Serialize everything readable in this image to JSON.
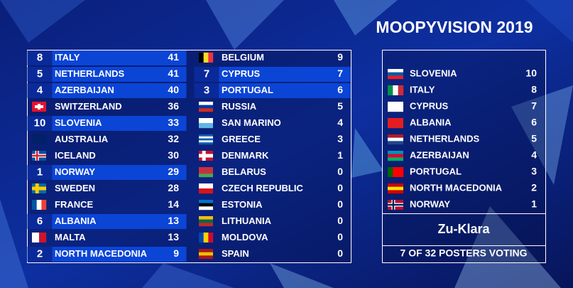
{
  "header": {
    "title": "MOOPYVISION 2019"
  },
  "scoreboard": {
    "columns": [
      [
        {
          "points": 8,
          "country": "ITALY",
          "total": 41
        },
        {
          "points": 5,
          "country": "NETHERLANDS",
          "total": 41
        },
        {
          "points": 4,
          "country": "AZERBAIJAN",
          "total": 40
        },
        {
          "country": "SWITZERLAND",
          "total": 36,
          "flag": {
            "kind": "cross",
            "colors": [
              "#e8112d",
              "#ffffff"
            ]
          }
        },
        {
          "points": 10,
          "country": "SLOVENIA",
          "total": 33
        },
        {
          "country": "AUSTRALIA",
          "total": 32,
          "flag": {
            "kind": "h",
            "colors": [
              "#012169"
            ]
          }
        },
        {
          "country": "ICELAND",
          "total": 30,
          "flag": {
            "kind": "nordic",
            "colors": [
              "#02529c",
              "#ffffff",
              "#dc1e35"
            ]
          }
        },
        {
          "points": 1,
          "country": "NORWAY",
          "total": 29
        },
        {
          "country": "SWEDEN",
          "total": 28,
          "flag": {
            "kind": "nordic",
            "colors": [
              "#006aa7",
              "#fecc00"
            ]
          }
        },
        {
          "country": "FRANCE",
          "total": 14,
          "flag": {
            "kind": "v",
            "colors": [
              "#0055a4",
              "#ffffff",
              "#ef4135"
            ]
          }
        },
        {
          "points": 6,
          "country": "ALBANIA",
          "total": 13
        },
        {
          "country": "MALTA",
          "total": 13,
          "flag": {
            "kind": "v",
            "colors": [
              "#ffffff",
              "#cf142b"
            ]
          }
        },
        {
          "points": 2,
          "country": "NORTH MACEDONIA",
          "total": 9
        }
      ],
      [
        {
          "country": "BELGIUM",
          "total": 9,
          "flag": {
            "kind": "v",
            "colors": [
              "#000000",
              "#fdda24",
              "#ef3340"
            ]
          }
        },
        {
          "points": 7,
          "country": "CYPRUS",
          "total": 7
        },
        {
          "points": 3,
          "country": "PORTUGAL",
          "total": 6
        },
        {
          "country": "RUSSIA",
          "total": 5,
          "flag": {
            "kind": "h",
            "colors": [
              "#ffffff",
              "#0039a6",
              "#d52b1e"
            ]
          }
        },
        {
          "country": "SAN MARINO",
          "total": 4,
          "flag": {
            "kind": "h",
            "colors": [
              "#ffffff",
              "#5eb6e4"
            ]
          }
        },
        {
          "country": "GREECE",
          "total": 3,
          "flag": {
            "kind": "h",
            "colors": [
              "#0d5eaf",
              "#ffffff",
              "#0d5eaf",
              "#ffffff",
              "#0d5eaf"
            ]
          }
        },
        {
          "country": "DENMARK",
          "total": 1,
          "flag": {
            "kind": "nordic",
            "colors": [
              "#c8102e",
              "#ffffff"
            ]
          }
        },
        {
          "country": "BELARUS",
          "total": 0,
          "flag": {
            "kind": "h",
            "colors": [
              "#c8313e",
              "#c8313e",
              "#4aa657"
            ]
          }
        },
        {
          "country": "CZECH REPUBLIC",
          "total": 0,
          "flag": {
            "kind": "h",
            "colors": [
              "#ffffff",
              "#d7141a"
            ]
          }
        },
        {
          "country": "ESTONIA",
          "total": 0,
          "flag": {
            "kind": "h",
            "colors": [
              "#0072ce",
              "#000000",
              "#ffffff"
            ]
          }
        },
        {
          "country": "LITHUANIA",
          "total": 0,
          "flag": {
            "kind": "h",
            "colors": [
              "#fdb913",
              "#006a44",
              "#c1272d"
            ]
          }
        },
        {
          "country": "MOLDOVA",
          "total": 0,
          "flag": {
            "kind": "v",
            "colors": [
              "#0046ae",
              "#ffd200",
              "#cc092f"
            ]
          }
        },
        {
          "country": "SPAIN",
          "total": 0,
          "flag": {
            "kind": "h",
            "colors": [
              "#aa151b",
              "#f1bf00",
              "#aa151b"
            ]
          }
        }
      ]
    ]
  },
  "voter": {
    "entries": [
      {
        "country": "SLOVENIA",
        "points": 10,
        "flag": {
          "kind": "h",
          "colors": [
            "#ffffff",
            "#005da4",
            "#ed1c24"
          ]
        }
      },
      {
        "country": "ITALY",
        "points": 8,
        "flag": {
          "kind": "v",
          "colors": [
            "#009246",
            "#ffffff",
            "#ce2b37"
          ]
        }
      },
      {
        "country": "CYPRUS",
        "points": 7,
        "flag": {
          "kind": "h",
          "colors": [
            "#ffffff"
          ]
        }
      },
      {
        "country": "ALBANIA",
        "points": 6,
        "flag": {
          "kind": "h",
          "colors": [
            "#e41e20"
          ]
        }
      },
      {
        "country": "NETHERLANDS",
        "points": 5,
        "flag": {
          "kind": "h",
          "colors": [
            "#ae1c28",
            "#ffffff",
            "#21468b"
          ]
        }
      },
      {
        "country": "AZERBAIJAN",
        "points": 4,
        "flag": {
          "kind": "h",
          "colors": [
            "#0092bc",
            "#e4002b",
            "#00af66"
          ]
        }
      },
      {
        "country": "PORTUGAL",
        "points": 3,
        "flag": {
          "kind": "v",
          "colors": [
            "#006600",
            "#ff0000",
            "#ff0000"
          ]
        }
      },
      {
        "country": "NORTH MACEDONIA",
        "points": 2,
        "flag": {
          "kind": "h",
          "colors": [
            "#d20000",
            "#ffe600",
            "#d20000"
          ]
        }
      },
      {
        "country": "NORWAY",
        "points": 1,
        "flag": {
          "kind": "nordic",
          "colors": [
            "#ba0c2f",
            "#ffffff",
            "#00205b"
          ]
        }
      }
    ],
    "name": "Zu-Klara",
    "status": "7 OF 32 POSTERS VOTING"
  }
}
